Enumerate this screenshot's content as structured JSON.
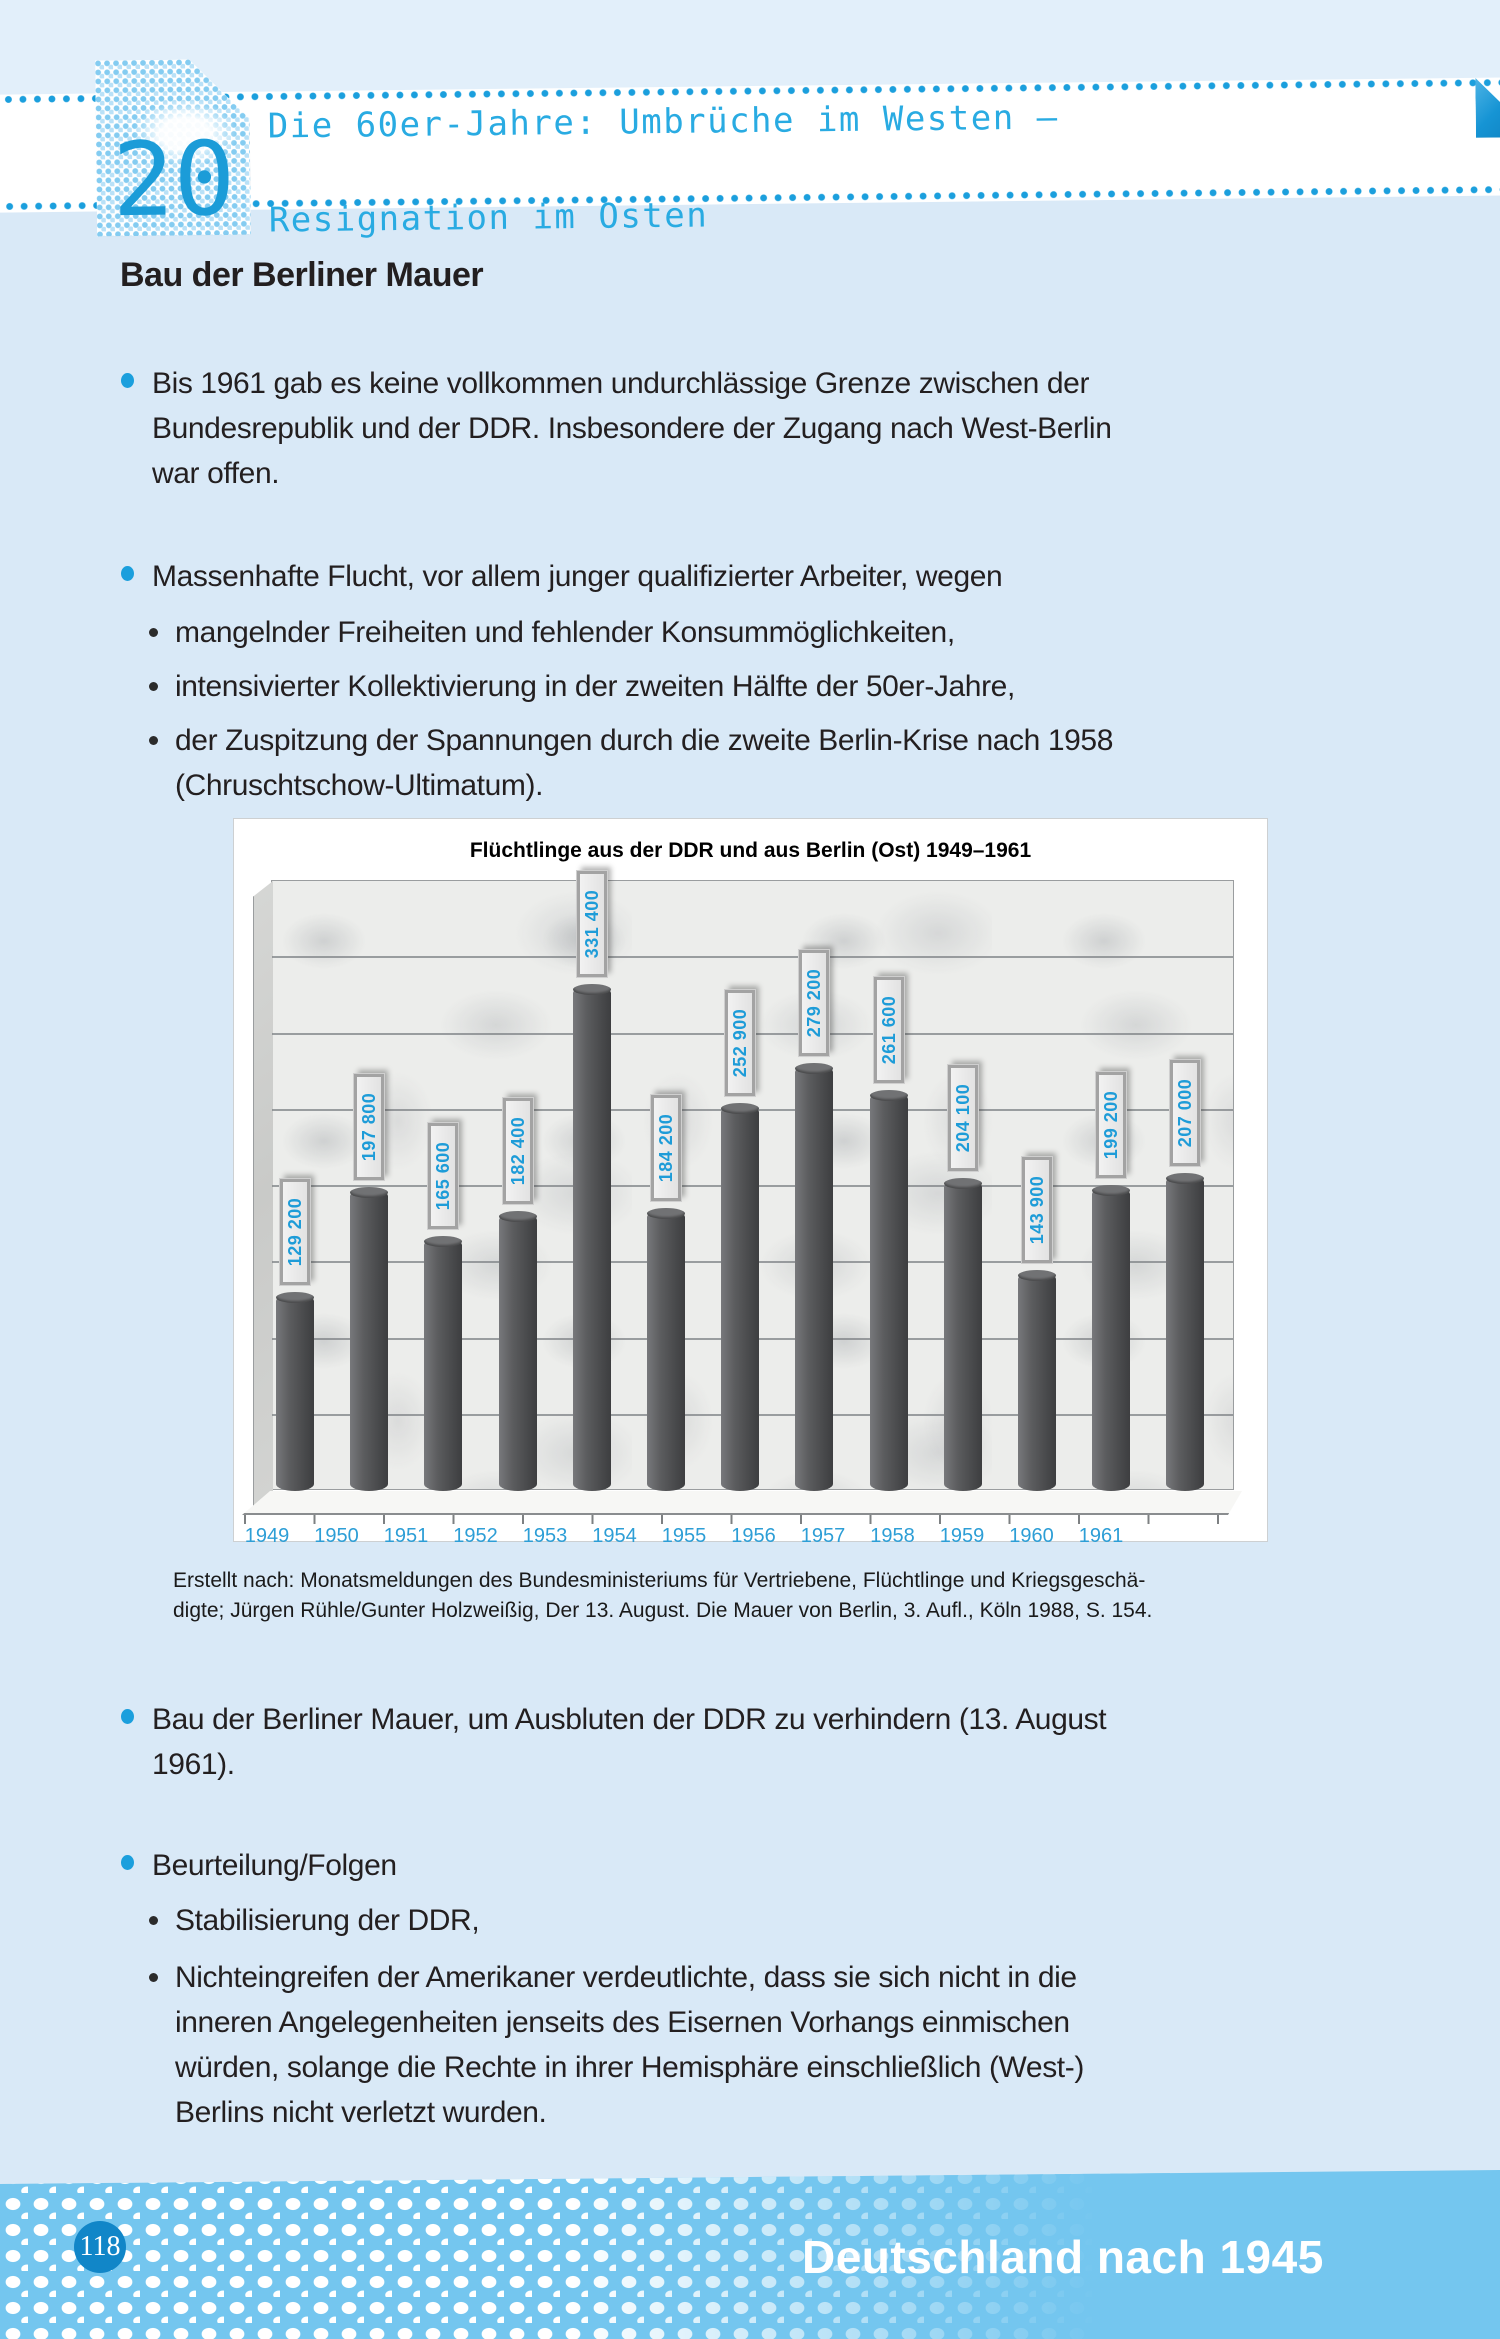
{
  "page": {
    "background": "#d9e9f7",
    "accent_blue": "#29abe2",
    "dot_blue": "#1b9fdd",
    "text_color": "#231f20"
  },
  "header": {
    "chapter_number": "20",
    "title_line1": "Die 60er-Jahre: Umbrüche im Westen –",
    "title_line2": "Resignation im Osten"
  },
  "content": {
    "heading": "Bau der Berliner Mauer",
    "bullet1": "Bis 1961 gab es keine vollkommen undurchlässige Grenze zwischen der\nBundesrepublik und der DDR. Insbesondere der Zugang nach West-Berlin\nwar offen.",
    "bullet2": "Massenhafte Flucht, vor allem junger qualifizierter Arbeiter, wegen",
    "bullet2_sub1": "mangelnder Freiheiten und fehlender Konsummöglichkeiten,",
    "bullet2_sub2": "intensivierter Kollektivierung in der zweiten Hälfte der 50er-Jahre,",
    "bullet2_sub3": "der Zuspitzung der Spannungen durch die zweite Berlin-Krise nach 1958\n(Chruschtschow-Ultimatum).",
    "bullet3": "Bau der Berliner Mauer, um Ausbluten der DDR zu verhindern (13. August\n1961).",
    "bullet4": "Beurteilung/Folgen",
    "bullet4_sub1": "Stabilisierung der DDR,",
    "bullet4_sub2": "Nichteingreifen der Amerikaner verdeutlichte, dass sie sich nicht in die\ninneren Angelegenheiten jenseits des Eisernen Vorhangs einmischen\nwürden, solange die Rechte in ihrer Hemisphäre einschließlich (West-)\nBerlins nicht verletzt wurden."
  },
  "chart": {
    "source_text": "Erstellt nach: Monatsmeldungen des Bundesministeriums für Vertriebene, Flüchtlinge und Kriegsgeschä-\ndigte; Jürgen Rühle/Gunter Holzweißig, Der 13. August. Die Mauer von Berlin, 3. Aufl., Köln 1988, S. 154."
  },
  "chart_data": {
    "type": "bar",
    "title": "Flüchtlinge aus der DDR und aus Berlin (Ost) 1949–1961",
    "categories": [
      "1949",
      "1950",
      "1951",
      "1952",
      "1953",
      "1954",
      "1955",
      "1956",
      "1957",
      "1958",
      "1959",
      "1960",
      "1961"
    ],
    "values": [
      129200,
      197800,
      165600,
      182400,
      331400,
      184200,
      252900,
      279200,
      261600,
      204100,
      143900,
      199200,
      207000
    ],
    "value_labels": [
      "129 200",
      "197 800",
      "165 600",
      "182 400",
      "331 400",
      "184 200",
      "252 900",
      "279 200",
      "261 600",
      "204 100",
      "143 900",
      "199 200",
      "207 000"
    ],
    "ylim": [
      0,
      400000
    ],
    "gridline_step": 50000,
    "grid": "on",
    "legend": "none",
    "bar_color": "#58595b",
    "value_label_color": "#1e9cd8",
    "axis_label_color": "#2d9ed6"
  },
  "footer": {
    "page_number": "118",
    "section_title": "Deutschland nach 1945"
  }
}
